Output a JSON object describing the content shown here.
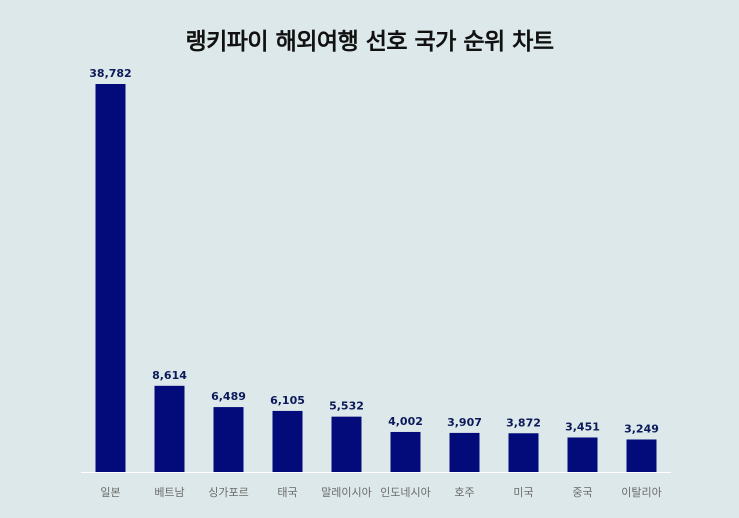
{
  "colors": {
    "background": "#dde8ea",
    "bar": "#020b79",
    "value_label": "#0c1a5a",
    "tick_label": "#6b6b6b",
    "axis": "#ffffff"
  },
  "chart_data": {
    "type": "bar",
    "title": "랭키파이 해외여행 선호 국가 순위 차트",
    "xlabel": "",
    "ylabel": "",
    "categories": [
      "일본",
      "베트남",
      "싱가포르",
      "태국",
      "말레이시아",
      "인도네시아",
      "호주",
      "미국",
      "중국",
      "이탈리아"
    ],
    "values": [
      38782,
      8614,
      6489,
      6105,
      5532,
      4002,
      3907,
      3872,
      3451,
      3249
    ],
    "value_labels": [
      "38,782",
      "8,614",
      "6,489",
      "6,105",
      "5,532",
      "4,002",
      "3,907",
      "3,872",
      "3,451",
      "3,249"
    ],
    "ylim": [
      0,
      38782
    ],
    "grid": false,
    "legend": "none"
  }
}
